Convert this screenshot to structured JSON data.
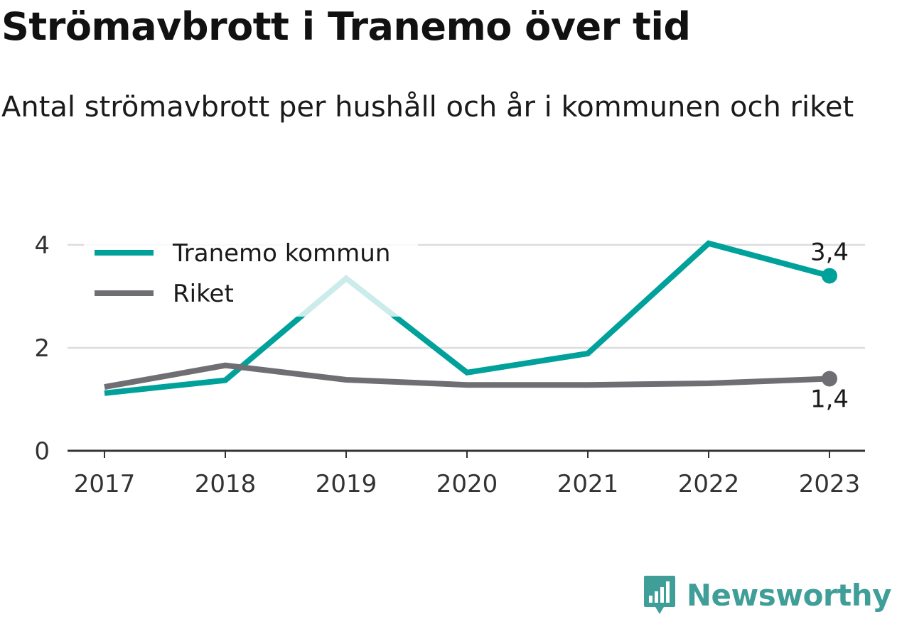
{
  "title": "Strömavbrott i Tranemo över tid",
  "subtitle": "Antal strömavbrott per hushåll och år i kommunen och riket",
  "brand": {
    "name": "Newsworthy",
    "icon": "newsworthy-logo-icon",
    "color": "#3f9e98"
  },
  "colors": {
    "teal": "#00a19a",
    "gray": "#6f6e73",
    "grid": "#dddddd",
    "axis": "#333333"
  },
  "chart_data": {
    "type": "line",
    "title": "Strömavbrott i Tranemo över tid",
    "subtitle": "Antal strömavbrott per hushåll och år i kommunen och riket",
    "xlabel": "",
    "ylabel": "",
    "categories": [
      "2017",
      "2018",
      "2019",
      "2020",
      "2021",
      "2022",
      "2023"
    ],
    "ylim": [
      0,
      4
    ],
    "yticks": [
      "0",
      "2",
      "4"
    ],
    "grid": true,
    "legend": "top-left",
    "series": [
      {
        "name": "Tranemo kommun",
        "color": "#00a19a",
        "values": [
          1.12,
          1.37,
          3.35,
          1.52,
          1.89,
          4.03,
          3.4
        ],
        "end_label": "3,4"
      },
      {
        "name": "Riket",
        "color": "#6f6e73",
        "values": [
          1.24,
          1.66,
          1.38,
          1.28,
          1.28,
          1.31,
          1.4
        ],
        "end_label": "1,4"
      }
    ]
  }
}
